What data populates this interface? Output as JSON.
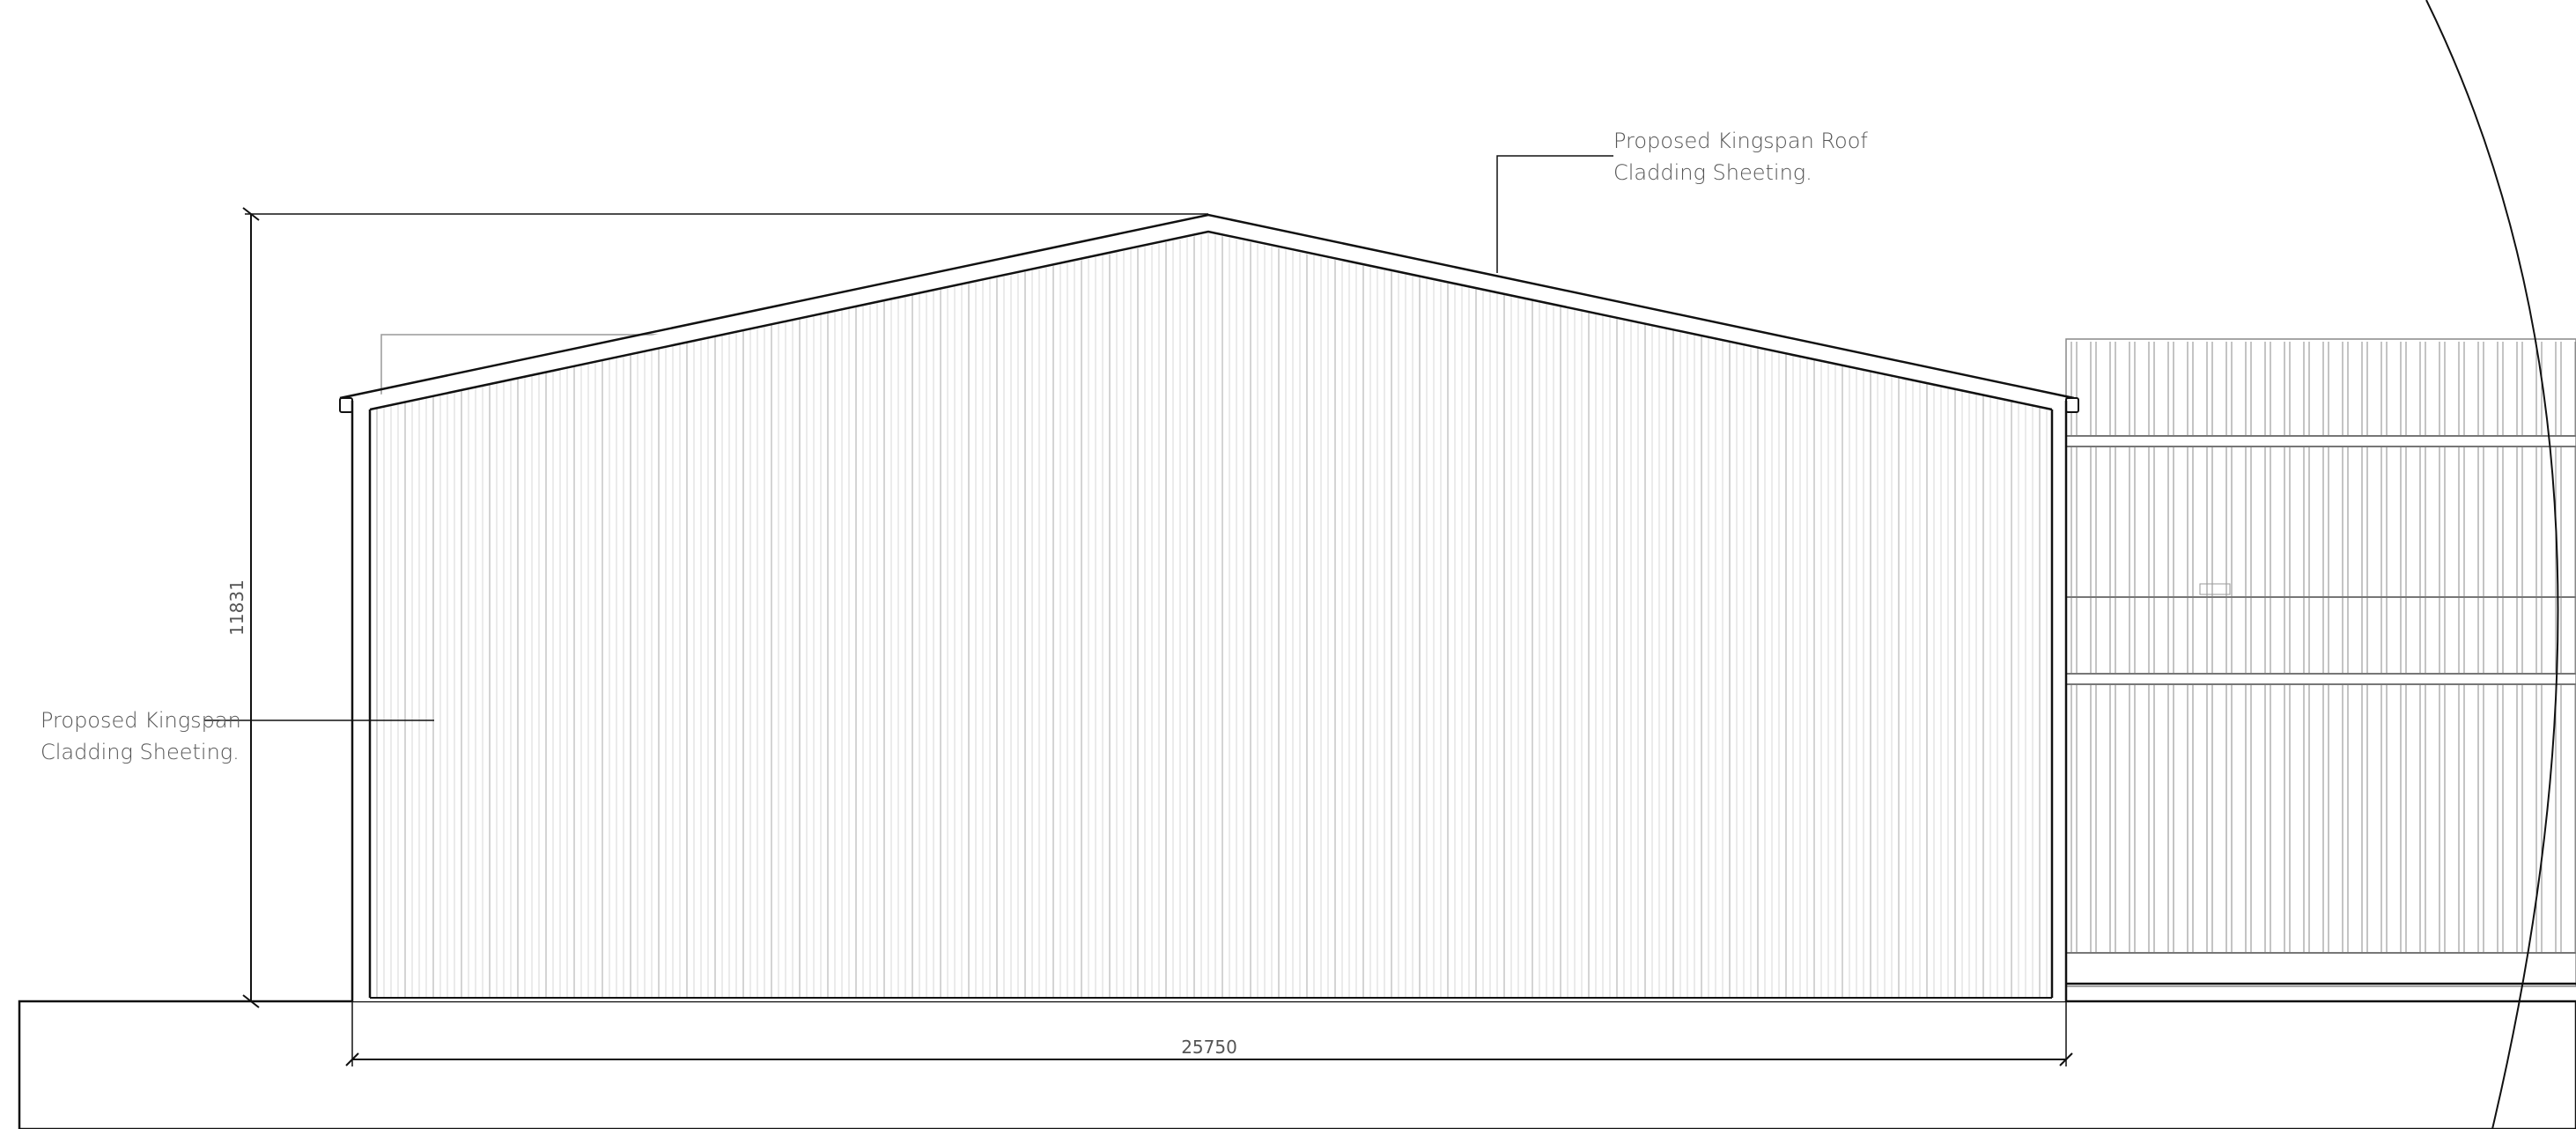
{
  "annotations": {
    "roof_cladding": {
      "line1": "Proposed Kingspan Roof",
      "line2": "Cladding Sheeting."
    },
    "wall_cladding": {
      "line1": "Proposed Kingspan",
      "line2": "Cladding Sheeting."
    }
  },
  "dimensions": {
    "height": "11831",
    "width": "25750"
  },
  "colors": {
    "line": "#111111",
    "cladding": "#bdbdbd",
    "text": "#555555"
  }
}
